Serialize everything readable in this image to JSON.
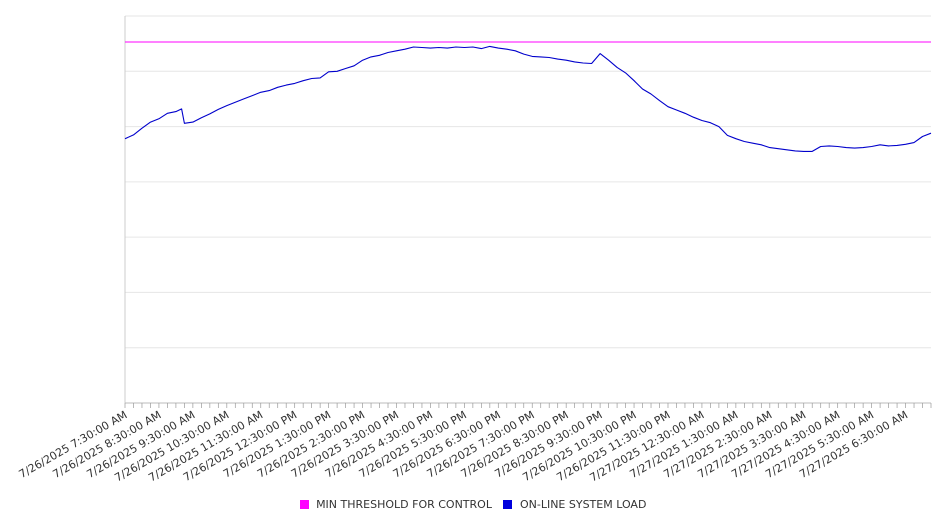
{
  "chart_data": {
    "type": "line",
    "title": "",
    "xlabel": "",
    "ylabel": "",
    "y_tick_labels_shown": false,
    "grid": "horizontal",
    "legend_position": "bottom",
    "x_tick_labels": [
      "7/26/2025 7:30:00 AM",
      "7/26/2025 8:30:00 AM",
      "7/26/2025 9:30:00 AM",
      "7/26/2025 10:30:00 AM",
      "7/26/2025 11:30:00 AM",
      "7/26/2025 12:30:00 PM",
      "7/26/2025 1:30:00 PM",
      "7/26/2025 2:30:00 PM",
      "7/26/2025 3:30:00 PM",
      "7/26/2025 4:30:00 PM",
      "7/26/2025 5:30:00 PM",
      "7/26/2025 6:30:00 PM",
      "7/26/2025 7:30:00 PM",
      "7/26/2025 8:30:00 PM",
      "7/26/2025 9:30:00 PM",
      "7/26/2025 10:30:00 PM",
      "7/26/2025 11:30:00 PM",
      "7/27/2025 12:30:00 AM",
      "7/27/2025 1:30:00 AM",
      "7/27/2025 2:30:00 AM",
      "7/27/2025 3:30:00 AM",
      "7/27/2025 4:30:00 AM",
      "7/27/2025 5:30:00 AM",
      "7/27/2025 6:30:00 AM"
    ],
    "series": [
      {
        "name": "MIN THRESHOLD FOR CONTROL",
        "color": "#ff00ff",
        "note_values_relative": "horizontal line, y in axis units 0-7",
        "x": [
          "7/26/2025 7:30:00 AM",
          "7/27/2025 7:15:00 AM"
        ],
        "y": [
          6.53,
          6.53
        ]
      },
      {
        "name": "ON-LINE SYSTEM LOAD",
        "color": "#0000cc",
        "x": [
          "7/26/2025 7:30:00 AM",
          "7/26/2025 7:45:00 AM",
          "7/26/2025 8:00:00 AM",
          "7/26/2025 8:15:00 AM",
          "7/26/2025 8:30:00 AM",
          "7/26/2025 8:45:00 AM",
          "7/26/2025 9:00:00 AM",
          "7/26/2025 9:10:00 AM",
          "7/26/2025 9:15:00 AM",
          "7/26/2025 9:30:00 AM",
          "7/26/2025 9:45:00 AM",
          "7/26/2025 10:00:00 AM",
          "7/26/2025 10:15:00 AM",
          "7/26/2025 10:30:00 AM",
          "7/26/2025 10:45:00 AM",
          "7/26/2025 11:00:00 AM",
          "7/26/2025 11:15:00 AM",
          "7/26/2025 11:30:00 AM",
          "7/26/2025 11:45:00 AM",
          "7/26/2025 12:00:00 PM",
          "7/26/2025 12:15:00 PM",
          "7/26/2025 12:30:00 PM",
          "7/26/2025 12:45:00 PM",
          "7/26/2025 1:00:00 PM",
          "7/26/2025 1:15:00 PM",
          "7/26/2025 1:30:00 PM",
          "7/26/2025 1:45:00 PM",
          "7/26/2025 2:00:00 PM",
          "7/26/2025 2:15:00 PM",
          "7/26/2025 2:30:00 PM",
          "7/26/2025 2:45:00 PM",
          "7/26/2025 3:00:00 PM",
          "7/26/2025 3:15:00 PM",
          "7/26/2025 3:30:00 PM",
          "7/26/2025 3:45:00 PM",
          "7/26/2025 4:00:00 PM",
          "7/26/2025 4:15:00 PM",
          "7/26/2025 4:30:00 PM",
          "7/26/2025 4:45:00 PM",
          "7/26/2025 5:00:00 PM",
          "7/26/2025 5:15:00 PM",
          "7/26/2025 5:30:00 PM",
          "7/26/2025 5:45:00 PM",
          "7/26/2025 6:00:00 PM",
          "7/26/2025 6:15:00 PM",
          "7/26/2025 6:30:00 PM",
          "7/26/2025 6:45:00 PM",
          "7/26/2025 7:00:00 PM",
          "7/26/2025 7:15:00 PM",
          "7/26/2025 7:30:00 PM",
          "7/26/2025 7:45:00 PM",
          "7/26/2025 8:00:00 PM",
          "7/26/2025 8:15:00 PM",
          "7/26/2025 8:30:00 PM",
          "7/26/2025 8:45:00 PM",
          "7/26/2025 9:00:00 PM",
          "7/26/2025 9:15:00 PM",
          "7/26/2025 9:30:00 PM",
          "7/26/2025 9:45:00 PM",
          "7/26/2025 10:00:00 PM",
          "7/26/2025 10:15:00 PM",
          "7/26/2025 10:30:00 PM",
          "7/26/2025 10:45:00 PM",
          "7/26/2025 11:00:00 PM",
          "7/26/2025 11:15:00 PM",
          "7/26/2025 11:30:00 PM",
          "7/26/2025 11:45:00 PM",
          "7/27/2025 12:00:00 AM",
          "7/27/2025 12:15:00 AM",
          "7/27/2025 12:30:00 AM",
          "7/27/2025 12:45:00 AM",
          "7/27/2025 1:00:00 AM",
          "7/27/2025 1:15:00 AM",
          "7/27/2025 1:30:00 AM",
          "7/27/2025 1:45:00 AM",
          "7/27/2025 2:00:00 AM",
          "7/27/2025 2:15:00 AM",
          "7/27/2025 2:30:00 AM",
          "7/27/2025 2:45:00 AM",
          "7/27/2025 3:00:00 AM",
          "7/27/2025 3:15:00 AM",
          "7/27/2025 3:30:00 AM",
          "7/27/2025 3:45:00 AM",
          "7/27/2025 4:00:00 AM",
          "7/27/2025 4:15:00 AM",
          "7/27/2025 4:30:00 AM",
          "7/27/2025 4:45:00 AM",
          "7/27/2025 5:00:00 AM",
          "7/27/2025 5:15:00 AM",
          "7/27/2025 5:30:00 AM",
          "7/27/2025 5:45:00 AM",
          "7/27/2025 6:00:00 AM",
          "7/27/2025 6:15:00 AM",
          "7/27/2025 6:30:00 AM",
          "7/27/2025 6:45:00 AM",
          "7/27/2025 7:00:00 AM",
          "7/27/2025 7:15:00 AM"
        ],
        "y": [
          4.78,
          4.85,
          4.97,
          5.08,
          5.14,
          5.24,
          5.27,
          5.32,
          5.06,
          5.08,
          5.16,
          5.23,
          5.31,
          5.38,
          5.44,
          5.5,
          5.56,
          5.62,
          5.65,
          5.71,
          5.75,
          5.78,
          5.83,
          5.87,
          5.88,
          5.99,
          6.0,
          6.05,
          6.1,
          6.2,
          6.26,
          6.29,
          6.34,
          6.37,
          6.4,
          6.44,
          6.43,
          6.42,
          6.43,
          6.42,
          6.44,
          6.43,
          6.44,
          6.41,
          6.45,
          6.42,
          6.4,
          6.37,
          6.31,
          6.27,
          6.26,
          6.25,
          6.22,
          6.2,
          6.17,
          6.15,
          6.14,
          6.32,
          6.2,
          6.07,
          5.97,
          5.83,
          5.68,
          5.59,
          5.47,
          5.36,
          5.3,
          5.24,
          5.17,
          5.11,
          5.07,
          5.0,
          4.84,
          4.78,
          4.73,
          4.7,
          4.67,
          4.62,
          4.6,
          4.58,
          4.56,
          4.55,
          4.55,
          4.64,
          4.65,
          4.64,
          4.62,
          4.61,
          4.62,
          4.64,
          4.67,
          4.65,
          4.66,
          4.68,
          4.71,
          4.82,
          4.88
        ]
      }
    ]
  }
}
